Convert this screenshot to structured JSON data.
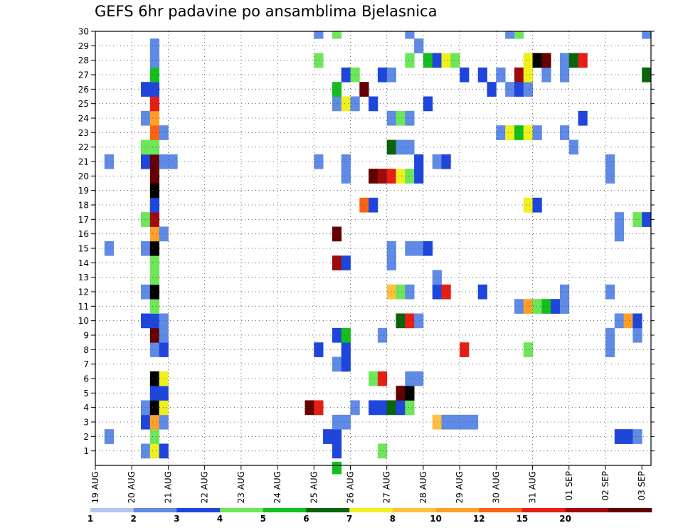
{
  "chart_data": {
    "type": "heatmap",
    "title": "GEFS 6hr padavine po ansamblima Bjelasnica",
    "x_tick_labels": [
      "19 AUG",
      "20 AUG",
      "21 AUG",
      "22 AUG",
      "23 AUG",
      "24 AUG",
      "25 AUG",
      "26 AUG",
      "27 AUG",
      "28 AUG",
      "29 AUG",
      "30 AUG",
      "31 AUG",
      "01 SEP",
      "02 SEP",
      "03 SEP"
    ],
    "y_tick_labels": [
      "1",
      "2",
      "3",
      "4",
      "5",
      "6",
      "7",
      "8",
      "9",
      "10",
      "11",
      "12",
      "13",
      "14",
      "15",
      "16",
      "17",
      "18",
      "19",
      "20",
      "21",
      "22",
      "23",
      "24",
      "25",
      "26",
      "27",
      "28",
      "29",
      "30"
    ],
    "x_range_days": [
      0,
      15.25
    ],
    "y_range_members": [
      0,
      30
    ],
    "time_step_hours": 6,
    "grid": true,
    "colorbar": {
      "labels": [
        "1",
        "2",
        "3",
        "4",
        "5",
        "6",
        "7",
        "8",
        "10",
        "12",
        "15",
        "20"
      ],
      "colors": [
        "#b4c6f0",
        "#5f8ae6",
        "#1e46dc",
        "#6ee65a",
        "#14be1e",
        "#0a640a",
        "#f0f01e",
        "#ffc040",
        "#ffa028",
        "#fa6414",
        "#e61e14",
        "#a00a0a",
        "#640000"
      ]
    },
    "cells": [
      [
        1,
        1.25,
        1
      ],
      [
        1,
        1.5,
        6
      ],
      [
        1,
        1.75,
        2
      ],
      [
        1,
        6.5,
        2
      ],
      [
        1,
        7.75,
        3
      ],
      [
        2,
        0.25,
        1
      ],
      [
        2,
        1.5,
        3
      ],
      [
        2,
        6.25,
        2
      ],
      [
        2,
        6.5,
        2
      ],
      [
        2,
        14.25,
        2
      ],
      [
        2,
        14.5,
        2
      ],
      [
        2,
        14.75,
        1
      ],
      [
        3,
        1.25,
        2
      ],
      [
        3,
        1.5,
        8
      ],
      [
        3,
        1.75,
        1
      ],
      [
        3,
        6.5,
        1
      ],
      [
        3,
        6.75,
        1
      ],
      [
        3,
        9.25,
        7
      ],
      [
        3,
        9.5,
        1
      ],
      [
        3,
        9.75,
        1
      ],
      [
        3,
        10.0,
        1
      ],
      [
        3,
        10.25,
        1
      ],
      [
        4,
        1.25,
        1
      ],
      [
        4,
        1.5,
        13
      ],
      [
        4,
        1.75,
        6
      ],
      [
        4,
        5.75,
        12
      ],
      [
        4,
        6.0,
        10
      ],
      [
        4,
        7.0,
        1
      ],
      [
        4,
        7.5,
        2
      ],
      [
        4,
        7.75,
        2
      ],
      [
        4,
        8.0,
        5
      ],
      [
        4,
        8.25,
        2
      ],
      [
        4,
        8.5,
        3
      ],
      [
        5,
        1.5,
        2
      ],
      [
        5,
        1.75,
        2
      ],
      [
        5,
        8.25,
        12
      ],
      [
        5,
        8.5,
        13
      ],
      [
        6,
        1.5,
        13
      ],
      [
        6,
        1.75,
        6
      ],
      [
        6,
        7.5,
        3
      ],
      [
        6,
        7.75,
        10
      ],
      [
        6,
        8.5,
        1
      ],
      [
        6,
        8.75,
        1
      ],
      [
        7,
        6.5,
        1
      ],
      [
        7,
        6.75,
        2
      ],
      [
        8,
        1.5,
        1
      ],
      [
        8,
        1.75,
        2
      ],
      [
        8,
        6.0,
        2
      ],
      [
        8,
        6.75,
        2
      ],
      [
        8,
        10.0,
        10
      ],
      [
        8,
        11.75,
        3
      ],
      [
        8,
        14.0,
        1
      ],
      [
        9,
        1.5,
        12
      ],
      [
        9,
        1.75,
        1
      ],
      [
        9,
        6.5,
        2
      ],
      [
        9,
        6.75,
        4
      ],
      [
        9,
        7.75,
        1
      ],
      [
        9,
        14.0,
        1
      ],
      [
        9,
        14.75,
        1
      ],
      [
        10,
        1.25,
        2
      ],
      [
        10,
        1.5,
        2
      ],
      [
        10,
        1.75,
        1
      ],
      [
        10,
        8.25,
        5
      ],
      [
        10,
        8.5,
        10
      ],
      [
        10,
        8.75,
        1
      ],
      [
        10,
        14.25,
        1
      ],
      [
        10,
        14.5,
        8
      ],
      [
        10,
        14.75,
        2
      ],
      [
        11,
        1.5,
        3
      ],
      [
        11,
        11.5,
        1
      ],
      [
        11,
        11.75,
        8
      ],
      [
        11,
        12.0,
        3
      ],
      [
        11,
        12.25,
        4
      ],
      [
        11,
        12.5,
        2
      ],
      [
        11,
        12.75,
        1
      ],
      [
        12,
        1.25,
        1
      ],
      [
        12,
        1.5,
        13
      ],
      [
        12,
        8.0,
        7
      ],
      [
        12,
        8.25,
        3
      ],
      [
        12,
        8.5,
        1
      ],
      [
        12,
        9.25,
        2
      ],
      [
        12,
        9.5,
        10
      ],
      [
        12,
        10.5,
        2
      ],
      [
        12,
        12.75,
        1
      ],
      [
        12,
        14.0,
        1
      ],
      [
        13,
        1.5,
        3
      ],
      [
        13,
        9.25,
        1
      ],
      [
        14,
        1.5,
        3
      ],
      [
        14,
        6.5,
        11
      ],
      [
        14,
        6.75,
        2
      ],
      [
        14,
        8.0,
        1
      ],
      [
        15,
        0.25,
        1
      ],
      [
        15,
        1.25,
        1
      ],
      [
        15,
        1.5,
        13
      ],
      [
        15,
        8.0,
        1
      ],
      [
        15,
        8.5,
        1
      ],
      [
        15,
        8.75,
        1
      ],
      [
        15,
        9.0,
        2
      ],
      [
        16,
        1.5,
        8
      ],
      [
        16,
        1.75,
        1
      ],
      [
        16,
        6.5,
        12
      ],
      [
        16,
        14.25,
        1
      ],
      [
        17,
        1.25,
        3
      ],
      [
        17,
        1.5,
        11
      ],
      [
        17,
        14.25,
        1
      ],
      [
        17,
        14.75,
        3
      ],
      [
        17,
        15.0,
        2
      ],
      [
        18,
        1.5,
        2
      ],
      [
        18,
        7.25,
        9
      ],
      [
        18,
        7.5,
        2
      ],
      [
        18,
        11.75,
        6
      ],
      [
        18,
        12.0,
        2
      ],
      [
        19,
        1.5,
        13
      ],
      [
        20,
        1.5,
        12
      ],
      [
        20,
        6.75,
        1
      ],
      [
        20,
        7.5,
        12
      ],
      [
        20,
        7.75,
        11
      ],
      [
        20,
        8.0,
        10
      ],
      [
        20,
        8.25,
        6
      ],
      [
        20,
        8.5,
        3
      ],
      [
        20,
        8.75,
        2
      ],
      [
        20,
        14.0,
        1
      ],
      [
        21,
        0.25,
        1
      ],
      [
        21,
        1.25,
        2
      ],
      [
        21,
        1.5,
        12
      ],
      [
        21,
        1.75,
        1
      ],
      [
        21,
        2.0,
        1
      ],
      [
        21,
        6.0,
        1
      ],
      [
        21,
        6.75,
        1
      ],
      [
        21,
        8.75,
        2
      ],
      [
        21,
        9.25,
        1
      ],
      [
        21,
        9.5,
        2
      ],
      [
        21,
        14.0,
        1
      ],
      [
        22,
        1.25,
        3
      ],
      [
        22,
        1.5,
        3
      ],
      [
        22,
        8.0,
        5
      ],
      [
        22,
        8.25,
        1
      ],
      [
        22,
        8.5,
        1
      ],
      [
        22,
        13.0,
        1
      ],
      [
        23,
        1.5,
        9
      ],
      [
        23,
        1.75,
        1
      ],
      [
        23,
        11.0,
        1
      ],
      [
        23,
        11.25,
        6
      ],
      [
        23,
        11.5,
        4
      ],
      [
        23,
        11.75,
        6
      ],
      [
        23,
        12.0,
        1
      ],
      [
        23,
        12.75,
        1
      ],
      [
        24,
        1.25,
        1
      ],
      [
        24,
        1.5,
        8
      ],
      [
        24,
        8.0,
        1
      ],
      [
        24,
        8.25,
        3
      ],
      [
        24,
        8.5,
        1
      ],
      [
        24,
        13.25,
        2
      ],
      [
        25,
        1.5,
        10
      ],
      [
        25,
        6.5,
        1
      ],
      [
        25,
        6.75,
        6
      ],
      [
        25,
        7.0,
        1
      ],
      [
        25,
        7.5,
        2
      ],
      [
        25,
        9.0,
        2
      ],
      [
        26,
        1.25,
        2
      ],
      [
        26,
        1.5,
        2
      ],
      [
        26,
        6.5,
        4
      ],
      [
        26,
        7.25,
        12
      ],
      [
        26,
        10.75,
        2
      ],
      [
        26,
        11.25,
        1
      ],
      [
        26,
        11.5,
        2
      ],
      [
        26,
        11.75,
        1
      ],
      [
        27,
        1.5,
        4
      ],
      [
        27,
        6.75,
        2
      ],
      [
        27,
        7.0,
        3
      ],
      [
        27,
        7.75,
        2
      ],
      [
        27,
        8.0,
        1
      ],
      [
        27,
        10.0,
        2
      ],
      [
        27,
        10.5,
        2
      ],
      [
        27,
        11.0,
        1
      ],
      [
        27,
        11.5,
        11
      ],
      [
        27,
        11.75,
        6
      ],
      [
        27,
        12.25,
        1
      ],
      [
        27,
        12.75,
        1
      ],
      [
        27,
        15.0,
        5
      ],
      [
        28,
        1.5,
        1
      ],
      [
        28,
        6.0,
        3
      ],
      [
        28,
        8.5,
        3
      ],
      [
        28,
        9.0,
        4
      ],
      [
        28,
        9.25,
        2
      ],
      [
        28,
        9.5,
        6
      ],
      [
        28,
        9.75,
        3
      ],
      [
        28,
        11.75,
        6
      ],
      [
        28,
        12.0,
        13
      ],
      [
        28,
        12.25,
        12
      ],
      [
        28,
        12.75,
        1
      ],
      [
        28,
        13.0,
        5
      ],
      [
        28,
        13.25,
        10
      ],
      [
        29,
        1.5,
        1
      ],
      [
        29,
        8.75,
        1
      ],
      [
        30,
        6.0,
        1
      ],
      [
        30,
        6.5,
        3
      ],
      [
        30,
        8.5,
        1
      ],
      [
        30,
        11.25,
        1
      ],
      [
        30,
        11.5,
        3
      ],
      [
        30,
        15.0,
        1
      ],
      [
        -0.25,
        6.5,
        4
      ]
    ]
  }
}
